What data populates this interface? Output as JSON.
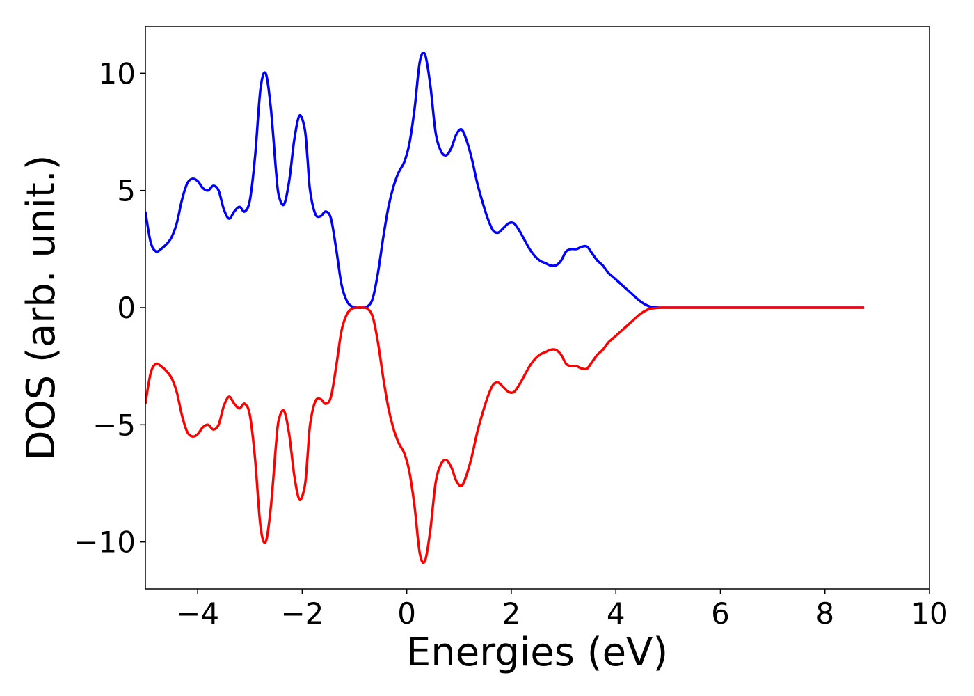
{
  "chart_data": {
    "type": "line",
    "title": "",
    "xlabel": "Energies (eV)",
    "ylabel": "DOS (arb. unit.)",
    "xlim": [
      -5,
      10
    ],
    "ylim": [
      -12,
      12
    ],
    "x_ticks": [
      -4,
      -2,
      0,
      2,
      4,
      6,
      8,
      10
    ],
    "y_ticks": [
      -10,
      -5,
      0,
      5,
      10
    ],
    "x_tick_labels": [
      "−4",
      "−2",
      "0",
      "2",
      "4",
      "6",
      "8",
      "10"
    ],
    "y_tick_labels": [
      "−10",
      "−5",
      "0",
      "5",
      "10"
    ],
    "grid": false,
    "legend": "none",
    "series": [
      {
        "color": "#0000ff",
        "x": [
          -5.0,
          -4.9,
          -4.8,
          -4.7,
          -4.6,
          -4.5,
          -4.4,
          -4.3,
          -4.2,
          -4.1,
          -4.0,
          -3.9,
          -3.8,
          -3.7,
          -3.6,
          -3.5,
          -3.4,
          -3.3,
          -3.2,
          -3.1,
          -3.0,
          -2.9,
          -2.8,
          -2.7,
          -2.6,
          -2.5,
          -2.45,
          -2.35,
          -2.25,
          -2.15,
          -2.05,
          -1.95,
          -1.9,
          -1.85,
          -1.75,
          -1.65,
          -1.55,
          -1.45,
          -1.35,
          -1.25,
          -1.15,
          -1.05,
          -0.95,
          -0.85,
          -0.75,
          -0.65,
          -0.55,
          -0.45,
          -0.35,
          -0.25,
          -0.15,
          -0.05,
          0.05,
          0.15,
          0.25,
          0.35,
          0.45,
          0.55,
          0.65,
          0.75,
          0.85,
          0.95,
          1.05,
          1.15,
          1.25,
          1.35,
          1.45,
          1.55,
          1.65,
          1.75,
          1.85,
          1.95,
          2.05,
          2.15,
          2.25,
          2.35,
          2.45,
          2.55,
          2.65,
          2.75,
          2.85,
          2.95,
          3.05,
          3.15,
          3.25,
          3.35,
          3.45,
          3.55,
          3.65,
          3.75,
          3.85,
          3.95,
          4.05,
          4.15,
          4.25,
          4.35,
          4.45,
          4.55,
          4.65,
          4.75,
          4.85,
          4.95,
          5.05,
          5.15,
          5.3,
          5.5,
          5.7,
          5.9,
          6.1,
          6.3,
          6.5,
          6.7,
          6.9,
          7.2,
          7.6,
          8.0,
          8.4,
          8.75
        ],
        "y": [
          4.1,
          2.8,
          2.4,
          2.5,
          2.7,
          3.0,
          3.6,
          4.6,
          5.3,
          5.5,
          5.4,
          5.1,
          5.0,
          5.2,
          5.0,
          4.2,
          3.8,
          4.1,
          4.3,
          4.1,
          4.6,
          6.5,
          9.3,
          10.0,
          8.5,
          5.8,
          4.8,
          4.4,
          5.4,
          7.2,
          8.2,
          7.6,
          6.4,
          5.0,
          4.0,
          3.9,
          4.1,
          3.8,
          2.5,
          1.0,
          0.3,
          0.05,
          0.0,
          0.0,
          0.05,
          0.4,
          1.5,
          3.0,
          4.3,
          5.2,
          5.8,
          6.2,
          7.0,
          8.5,
          10.5,
          10.8,
          9.5,
          7.5,
          6.7,
          6.5,
          6.8,
          7.4,
          7.6,
          7.1,
          6.3,
          5.3,
          4.5,
          3.8,
          3.3,
          3.2,
          3.4,
          3.6,
          3.6,
          3.3,
          2.9,
          2.5,
          2.2,
          2.0,
          1.9,
          1.8,
          1.8,
          2.0,
          2.4,
          2.5,
          2.5,
          2.6,
          2.6,
          2.3,
          2.0,
          1.8,
          1.5,
          1.3,
          1.1,
          0.9,
          0.7,
          0.5,
          0.3,
          0.15,
          0.05,
          0.02,
          0.0,
          0.0,
          0.0,
          0.0,
          0.0,
          0.0,
          0.0,
          0.0,
          0.0,
          0.0,
          0.0,
          0.0,
          0.0,
          0.0,
          0.0,
          0.0,
          0.0,
          0.0
        ]
      },
      {
        "color": "#ff0000",
        "x": [
          -5.0,
          -4.9,
          -4.8,
          -4.7,
          -4.6,
          -4.5,
          -4.4,
          -4.3,
          -4.2,
          -4.1,
          -4.0,
          -3.9,
          -3.8,
          -3.7,
          -3.6,
          -3.5,
          -3.4,
          -3.3,
          -3.2,
          -3.1,
          -3.0,
          -2.9,
          -2.8,
          -2.7,
          -2.6,
          -2.5,
          -2.45,
          -2.35,
          -2.25,
          -2.15,
          -2.05,
          -1.95,
          -1.9,
          -1.85,
          -1.75,
          -1.65,
          -1.55,
          -1.45,
          -1.35,
          -1.25,
          -1.15,
          -1.05,
          -0.95,
          -0.85,
          -0.75,
          -0.65,
          -0.55,
          -0.45,
          -0.35,
          -0.25,
          -0.15,
          -0.05,
          0.05,
          0.15,
          0.25,
          0.35,
          0.45,
          0.55,
          0.65,
          0.75,
          0.85,
          0.95,
          1.05,
          1.15,
          1.25,
          1.35,
          1.45,
          1.55,
          1.65,
          1.75,
          1.85,
          1.95,
          2.05,
          2.15,
          2.25,
          2.35,
          2.45,
          2.55,
          2.65,
          2.75,
          2.85,
          2.95,
          3.05,
          3.15,
          3.25,
          3.35,
          3.45,
          3.55,
          3.65,
          3.75,
          3.85,
          3.95,
          4.05,
          4.15,
          4.25,
          4.35,
          4.45,
          4.55,
          4.65,
          4.75,
          4.85,
          4.95,
          5.05,
          5.15,
          5.3,
          5.5,
          5.7,
          5.9,
          6.1,
          6.3,
          6.5,
          6.7,
          6.9,
          7.2,
          7.6,
          8.0,
          8.4,
          8.75
        ],
        "y": [
          -4.1,
          -2.8,
          -2.4,
          -2.5,
          -2.7,
          -3.0,
          -3.6,
          -4.6,
          -5.3,
          -5.5,
          -5.4,
          -5.1,
          -5.0,
          -5.2,
          -5.0,
          -4.2,
          -3.8,
          -4.1,
          -4.3,
          -4.1,
          -4.6,
          -6.5,
          -9.3,
          -10.0,
          -8.5,
          -5.8,
          -4.8,
          -4.4,
          -5.4,
          -7.2,
          -8.2,
          -7.6,
          -6.4,
          -5.0,
          -4.0,
          -3.9,
          -4.1,
          -3.8,
          -2.5,
          -1.0,
          -0.3,
          -0.05,
          0.0,
          0.0,
          -0.05,
          -0.4,
          -1.5,
          -3.0,
          -4.3,
          -5.2,
          -5.8,
          -6.2,
          -7.0,
          -8.5,
          -10.5,
          -10.8,
          -9.5,
          -7.5,
          -6.7,
          -6.5,
          -6.8,
          -7.4,
          -7.6,
          -7.1,
          -6.3,
          -5.3,
          -4.5,
          -3.8,
          -3.3,
          -3.2,
          -3.4,
          -3.6,
          -3.6,
          -3.3,
          -2.9,
          -2.5,
          -2.2,
          -2.0,
          -1.9,
          -1.8,
          -1.8,
          -2.0,
          -2.4,
          -2.5,
          -2.5,
          -2.6,
          -2.6,
          -2.3,
          -2.0,
          -1.8,
          -1.5,
          -1.3,
          -1.1,
          -0.9,
          -0.7,
          -0.5,
          -0.3,
          -0.15,
          -0.05,
          -0.02,
          0.0,
          0.0,
          0.0,
          0.0,
          0.0,
          0.0,
          0.0,
          0.0,
          0.0,
          0.0,
          0.0,
          0.0,
          0.0,
          0.0,
          0.0,
          0.0,
          0.0,
          0.0
        ]
      }
    ]
  }
}
